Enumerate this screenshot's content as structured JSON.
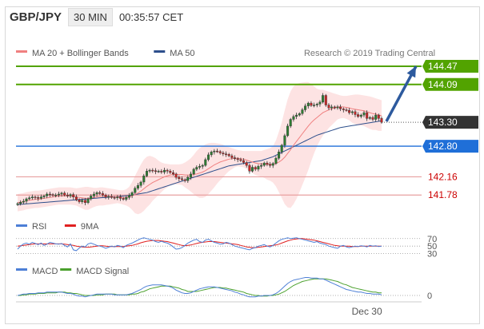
{
  "header": {
    "symbol": "GBP/JPY",
    "timeframe": "30 MIN",
    "time": "00:35:57 CET"
  },
  "research_credit": "Research © 2019 Trading Central",
  "colors": {
    "ma20": "#f08080",
    "ma50": "#2d4f8c",
    "resistance": "#52a300",
    "support_line": "#e8a0a0",
    "support_text": "#cc0000",
    "pivot": "#1f6fd8",
    "last_price": "#333333",
    "band_fill": "#fde3e3",
    "rsi": "#4d7fd6",
    "rsi_ma": "#e02020",
    "macd": "#4d7fd6",
    "macd_signal": "#4aa02c",
    "arrow": "#2d5a9e",
    "candle_up": "#2e7d32",
    "candle_down": "#c62828"
  },
  "chart_data": [
    {
      "type": "candlestick",
      "legend": [
        {
          "label": "MA 20 + Bollinger Bands",
          "color_key": "ma20"
        },
        {
          "label": "MA 50",
          "color_key": "ma50"
        }
      ],
      "ylim": [
        141.35,
        144.72
      ],
      "levels": [
        {
          "value": 144.47,
          "label": "144.47",
          "kind": "resistance"
        },
        {
          "value": 144.09,
          "label": "144.09",
          "kind": "resistance"
        },
        {
          "value": 143.3,
          "label": "143.30",
          "kind": "last"
        },
        {
          "value": 142.8,
          "label": "142.80",
          "kind": "pivot"
        },
        {
          "value": 142.16,
          "label": "142.16",
          "kind": "support"
        },
        {
          "value": 141.78,
          "label": "141.78",
          "kind": "support"
        }
      ],
      "arrow": {
        "from_value": 143.32,
        "to_value": 144.47
      },
      "close": [
        141.6,
        141.63,
        141.65,
        141.7,
        141.72,
        141.74,
        141.73,
        141.71,
        141.74,
        141.76,
        141.8,
        141.79,
        141.77,
        141.78,
        141.8,
        141.82,
        141.78,
        141.76,
        141.79,
        141.74,
        141.68,
        141.64,
        141.67,
        141.62,
        141.7,
        141.76,
        141.8,
        141.83,
        141.81,
        141.78,
        141.74,
        141.75,
        141.73,
        141.72,
        141.74,
        141.71,
        141.69,
        141.73,
        141.77,
        141.83,
        141.92,
        141.98,
        142.05,
        142.18,
        142.28,
        142.3,
        142.29,
        142.27,
        142.28,
        142.26,
        142.3,
        142.28,
        142.25,
        142.22,
        142.15,
        142.12,
        142.1,
        142.08,
        142.15,
        142.22,
        142.32,
        142.36,
        142.38,
        142.4,
        142.52,
        142.62,
        142.68,
        142.7,
        142.69,
        142.66,
        142.64,
        142.63,
        142.6,
        142.56,
        142.54,
        142.52,
        142.5,
        142.46,
        142.4,
        142.28,
        142.36,
        142.32,
        142.38,
        142.4,
        142.45,
        142.42,
        142.4,
        142.44,
        142.55,
        142.68,
        142.82,
        143.02,
        143.22,
        143.36,
        143.42,
        143.45,
        143.48,
        143.56,
        143.64,
        143.7,
        143.65,
        143.66,
        143.68,
        143.72,
        143.86,
        143.66,
        143.6,
        143.62,
        143.6,
        143.62,
        143.58,
        143.56,
        143.55,
        143.5,
        143.52,
        143.46,
        143.42,
        143.45,
        143.5,
        143.38,
        143.4,
        143.36,
        143.45,
        143.38,
        143.3
      ],
      "ma20": [
        141.62,
        141.63,
        141.64,
        141.66,
        141.67,
        141.68,
        141.69,
        141.69,
        141.7,
        141.71,
        141.72,
        141.73,
        141.74,
        141.75,
        141.76,
        141.76,
        141.76,
        141.76,
        141.76,
        141.75,
        141.74,
        141.73,
        141.72,
        141.71,
        141.71,
        141.72,
        141.73,
        141.74,
        141.75,
        141.75,
        141.75,
        141.75,
        141.75,
        141.75,
        141.75,
        141.74,
        141.73,
        141.73,
        141.74,
        141.76,
        141.79,
        141.82,
        141.86,
        141.91,
        141.96,
        142.0,
        142.04,
        142.07,
        142.1,
        142.13,
        142.16,
        142.18,
        142.2,
        142.21,
        142.21,
        142.21,
        142.21,
        142.2,
        142.2,
        142.2,
        142.21,
        142.22,
        142.24,
        142.26,
        142.29,
        142.33,
        142.37,
        142.41,
        142.44,
        142.47,
        142.49,
        142.51,
        142.53,
        142.54,
        142.55,
        142.55,
        142.54,
        142.53,
        142.51,
        142.49,
        142.47,
        142.45,
        142.44,
        142.43,
        142.43,
        142.42,
        142.42,
        142.42,
        142.44,
        142.47,
        142.51,
        142.57,
        142.65,
        142.73,
        142.82,
        142.9,
        142.98,
        143.06,
        143.14,
        143.22,
        143.29,
        143.35,
        143.4,
        143.45,
        143.5,
        143.53,
        143.56,
        143.58,
        143.6,
        143.62,
        143.62,
        143.62,
        143.61,
        143.6,
        143.58,
        143.57,
        143.56,
        143.55,
        143.54,
        143.52,
        143.5,
        143.48,
        143.47,
        143.45,
        143.44
      ],
      "bb_upper": [
        141.8,
        141.81,
        141.82,
        141.84,
        141.85,
        141.86,
        141.87,
        141.87,
        141.88,
        141.89,
        141.9,
        141.91,
        141.92,
        141.93,
        141.94,
        141.94,
        141.94,
        141.94,
        141.94,
        141.93,
        141.92,
        141.93,
        141.94,
        141.95,
        141.95,
        141.94,
        141.93,
        141.93,
        141.94,
        141.94,
        141.93,
        141.92,
        141.91,
        141.9,
        141.89,
        141.88,
        141.88,
        141.9,
        141.95,
        142.05,
        142.18,
        142.3,
        142.42,
        142.52,
        142.58,
        142.6,
        142.58,
        142.55,
        142.5,
        142.46,
        142.44,
        142.43,
        142.42,
        142.42,
        142.42,
        142.42,
        142.43,
        142.46,
        142.5,
        142.55,
        142.62,
        142.7,
        142.76,
        142.8,
        142.84,
        142.86,
        142.87,
        142.87,
        142.86,
        142.85,
        142.83,
        142.8,
        142.78,
        142.76,
        142.74,
        142.72,
        142.71,
        142.7,
        142.7,
        142.7,
        142.7,
        142.7,
        142.7,
        142.7,
        142.72,
        142.74,
        142.76,
        142.8,
        142.92,
        143.1,
        143.3,
        143.55,
        143.78,
        143.95,
        144.05,
        144.1,
        144.12,
        144.13,
        144.14,
        144.14,
        144.1,
        144.05,
        144.0,
        143.98,
        143.98,
        143.96,
        143.94,
        143.92,
        143.9,
        143.88,
        143.86,
        143.85,
        143.85,
        143.86,
        143.87,
        143.88,
        143.88,
        143.87,
        143.86,
        143.85,
        143.84,
        143.82,
        143.8,
        143.78,
        143.76
      ],
      "bb_lower": [
        141.44,
        141.45,
        141.46,
        141.48,
        141.49,
        141.5,
        141.51,
        141.51,
        141.52,
        141.53,
        141.54,
        141.55,
        141.56,
        141.57,
        141.58,
        141.58,
        141.58,
        141.58,
        141.58,
        141.57,
        141.56,
        141.53,
        141.5,
        141.47,
        141.47,
        141.5,
        141.53,
        141.55,
        141.56,
        141.56,
        141.57,
        141.58,
        141.59,
        141.6,
        141.61,
        141.6,
        141.58,
        141.56,
        141.53,
        141.47,
        141.4,
        141.38,
        141.4,
        141.45,
        141.52,
        141.58,
        141.66,
        141.72,
        141.78,
        141.84,
        141.9,
        141.94,
        141.98,
        142.0,
        142.0,
        142.0,
        141.99,
        141.94,
        141.9,
        141.85,
        141.8,
        141.75,
        141.72,
        141.72,
        141.74,
        141.8,
        141.87,
        141.94,
        142.02,
        142.09,
        142.15,
        142.22,
        142.28,
        142.32,
        142.36,
        142.38,
        142.37,
        142.36,
        142.32,
        142.28,
        142.24,
        142.2,
        142.18,
        142.16,
        142.14,
        142.1,
        142.08,
        142.04,
        141.96,
        141.84,
        141.72,
        141.59,
        141.52,
        141.51,
        141.59,
        141.7,
        141.84,
        141.99,
        142.14,
        142.3,
        142.48,
        142.65,
        142.8,
        142.92,
        143.02,
        143.1,
        143.18,
        143.24,
        143.3,
        143.36,
        143.38,
        143.39,
        143.37,
        143.34,
        143.29,
        143.26,
        143.24,
        143.23,
        143.22,
        143.19,
        143.16,
        143.14,
        143.14,
        143.12,
        143.12
      ],
      "ma50": [
        141.58,
        141.585,
        141.59,
        141.595,
        141.6,
        141.605,
        141.61,
        141.615,
        141.62,
        141.625,
        141.63,
        141.635,
        141.64,
        141.645,
        141.65,
        141.655,
        141.66,
        141.665,
        141.67,
        141.675,
        141.68,
        141.685,
        141.69,
        141.695,
        141.7,
        141.705,
        141.71,
        141.715,
        141.72,
        141.725,
        141.73,
        141.735,
        141.74,
        141.745,
        141.75,
        141.755,
        141.76,
        141.765,
        141.77,
        141.78,
        141.79,
        141.8,
        141.81,
        141.82,
        141.83,
        141.85,
        141.87,
        141.89,
        141.91,
        141.93,
        141.95,
        141.97,
        141.99,
        142.01,
        142.03,
        142.05,
        142.07,
        142.09,
        142.11,
        142.13,
        142.15,
        142.17,
        142.19,
        142.21,
        142.23,
        142.25,
        142.27,
        142.29,
        142.31,
        142.33,
        142.35,
        142.37,
        142.39,
        142.4,
        142.41,
        142.42,
        142.43,
        142.44,
        142.45,
        142.46,
        142.47,
        142.48,
        142.49,
        142.5,
        142.52,
        142.54,
        142.56,
        142.58,
        142.61,
        142.64,
        142.67,
        142.7,
        142.73,
        142.76,
        142.79,
        142.82,
        142.85,
        142.88,
        142.91,
        142.94,
        142.97,
        143.0,
        143.03,
        143.05,
        143.07,
        143.09,
        143.11,
        143.13,
        143.15,
        143.17,
        143.19,
        143.2,
        143.21,
        143.22,
        143.23,
        143.24,
        143.25,
        143.26,
        143.27,
        143.28,
        143.29,
        143.3,
        143.31,
        143.32,
        143.33
      ]
    },
    {
      "type": "line",
      "legend": [
        {
          "label": "RSI",
          "color_key": "rsi"
        },
        {
          "label": "9MA",
          "color_key": "rsi_ma"
        }
      ],
      "ylim": [
        25,
        78
      ],
      "levels": [
        {
          "value": 70,
          "label": "70"
        },
        {
          "value": 50,
          "label": "50"
        },
        {
          "value": 30,
          "label": "30"
        }
      ],
      "rsi": [
        42,
        50,
        56,
        58,
        55,
        60,
        57,
        54,
        58,
        52,
        55,
        60,
        58,
        56,
        55,
        57,
        52,
        48,
        56,
        40,
        38,
        45,
        50,
        48,
        56,
        58,
        55,
        52,
        50,
        48,
        44,
        47,
        50,
        48,
        52,
        50,
        46,
        52,
        55,
        58,
        62,
        66,
        70,
        72,
        70,
        68,
        66,
        62,
        60,
        63,
        60,
        58,
        54,
        48,
        42,
        43,
        46,
        52,
        58,
        62,
        66,
        68,
        62,
        60,
        66,
        68,
        64,
        60,
        58,
        55,
        56,
        60,
        58,
        54,
        50,
        48,
        46,
        44,
        42,
        40,
        44,
        46,
        50,
        52,
        54,
        50,
        48,
        52,
        58,
        64,
        68,
        70,
        72,
        70,
        71,
        72,
        70,
        68,
        66,
        64,
        62,
        60,
        62,
        58,
        56,
        54,
        50,
        48,
        46,
        44,
        50,
        52,
        48,
        46,
        48,
        50,
        49,
        51,
        50,
        48,
        52,
        50,
        51,
        49,
        50
      ],
      "ma9": [
        50,
        51,
        52,
        53,
        54,
        55,
        56,
        56,
        56,
        56,
        56,
        56,
        56,
        56,
        56,
        56,
        55,
        54,
        53,
        52,
        50,
        49,
        48,
        47,
        47,
        48,
        49,
        50,
        51,
        51,
        50,
        49,
        49,
        49,
        49,
        49,
        49,
        50,
        51,
        52,
        54,
        56,
        59,
        61,
        63,
        64,
        65,
        65,
        65,
        64,
        63,
        62,
        60,
        58,
        56,
        54,
        52,
        51,
        52,
        53,
        55,
        57,
        59,
        60,
        61,
        62,
        62,
        62,
        61,
        60,
        59,
        58,
        57,
        56,
        55,
        54,
        52,
        50,
        48,
        47,
        46,
        46,
        47,
        48,
        49,
        50,
        51,
        52,
        53,
        55,
        58,
        61,
        64,
        66,
        68,
        69,
        70,
        70,
        69,
        68,
        67,
        66,
        64,
        62,
        60,
        58,
        56,
        54,
        52,
        51,
        50,
        50,
        50,
        50,
        49,
        49,
        49,
        50,
        50,
        50,
        50,
        50,
        50,
        50,
        50
      ]
    },
    {
      "type": "line",
      "legend": [
        {
          "label": "MACD",
          "color_key": "macd"
        },
        {
          "label": "MACD Signal",
          "color_key": "macd_signal"
        }
      ],
      "ylim": [
        -0.06,
        0.3
      ],
      "levels": [
        {
          "value": 0,
          "label": "0"
        }
      ],
      "xtick": {
        "label": "Dec 30",
        "index": 119
      },
      "macd": [
        0.0,
        0.01,
        0.02,
        0.02,
        0.03,
        0.03,
        0.03,
        0.04,
        0.04,
        0.04,
        0.05,
        0.05,
        0.05,
        0.05,
        0.05,
        0.05,
        0.04,
        0.03,
        0.03,
        0.02,
        0.0,
        -0.01,
        -0.01,
        -0.02,
        -0.01,
        0.0,
        0.01,
        0.02,
        0.02,
        0.02,
        0.02,
        0.02,
        0.02,
        0.01,
        0.01,
        0.01,
        0.01,
        0.01,
        0.02,
        0.03,
        0.05,
        0.07,
        0.09,
        0.12,
        0.14,
        0.15,
        0.16,
        0.16,
        0.16,
        0.16,
        0.15,
        0.14,
        0.13,
        0.11,
        0.08,
        0.06,
        0.04,
        0.03,
        0.03,
        0.04,
        0.06,
        0.08,
        0.1,
        0.11,
        0.12,
        0.13,
        0.13,
        0.13,
        0.12,
        0.11,
        0.1,
        0.09,
        0.08,
        0.07,
        0.05,
        0.04,
        0.02,
        0.01,
        -0.01,
        -0.02,
        -0.02,
        -0.02,
        -0.01,
        -0.01,
        0.0,
        0.0,
        0.0,
        0.01,
        0.03,
        0.06,
        0.1,
        0.14,
        0.18,
        0.21,
        0.23,
        0.24,
        0.25,
        0.26,
        0.27,
        0.27,
        0.26,
        0.26,
        0.26,
        0.25,
        0.25,
        0.23,
        0.21,
        0.19,
        0.17,
        0.15,
        0.13,
        0.11,
        0.09,
        0.08,
        0.07,
        0.06,
        0.05,
        0.05,
        0.04,
        0.03,
        0.03,
        0.02,
        0.02,
        0.02,
        0.01
      ],
      "signal": [
        0.0,
        0.0,
        0.01,
        0.01,
        0.02,
        0.02,
        0.02,
        0.03,
        0.03,
        0.03,
        0.04,
        0.04,
        0.04,
        0.04,
        0.05,
        0.05,
        0.05,
        0.04,
        0.04,
        0.03,
        0.03,
        0.02,
        0.01,
        0.0,
        0.0,
        0.0,
        0.0,
        0.01,
        0.01,
        0.01,
        0.02,
        0.02,
        0.02,
        0.02,
        0.01,
        0.01,
        0.01,
        0.01,
        0.01,
        0.02,
        0.02,
        0.03,
        0.05,
        0.06,
        0.08,
        0.1,
        0.11,
        0.12,
        0.13,
        0.14,
        0.14,
        0.14,
        0.14,
        0.13,
        0.12,
        0.11,
        0.09,
        0.08,
        0.06,
        0.06,
        0.06,
        0.06,
        0.07,
        0.08,
        0.09,
        0.1,
        0.11,
        0.12,
        0.12,
        0.12,
        0.11,
        0.11,
        0.1,
        0.09,
        0.08,
        0.07,
        0.06,
        0.05,
        0.03,
        0.02,
        0.01,
        0.0,
        0.0,
        -0.01,
        -0.01,
        -0.01,
        0.0,
        0.0,
        0.01,
        0.02,
        0.04,
        0.06,
        0.09,
        0.12,
        0.15,
        0.17,
        0.19,
        0.21,
        0.22,
        0.23,
        0.24,
        0.25,
        0.25,
        0.25,
        0.25,
        0.25,
        0.24,
        0.23,
        0.22,
        0.21,
        0.19,
        0.17,
        0.16,
        0.14,
        0.12,
        0.11,
        0.1,
        0.09,
        0.08,
        0.07,
        0.06,
        0.05,
        0.05,
        0.04,
        0.04
      ]
    }
  ]
}
